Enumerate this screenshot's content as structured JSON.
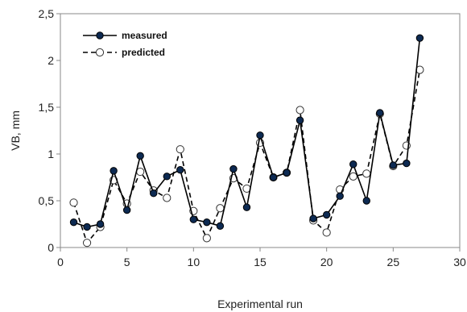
{
  "chart_data": {
    "type": "line",
    "title": "",
    "xlabel": "Experimental run",
    "ylabel": "VB, mm",
    "xlim": [
      0,
      30
    ],
    "ylim": [
      0,
      2.5
    ],
    "xticks": [
      0,
      5,
      10,
      15,
      20,
      25,
      30
    ],
    "xtick_labels": [
      "0",
      "5",
      "10",
      "15",
      "20",
      "25",
      "30"
    ],
    "yticks": [
      0,
      0.5,
      1,
      1.5,
      2,
      2.5
    ],
    "ytick_labels": [
      "0",
      "0,5",
      "1",
      "1,5",
      "2",
      "2,5"
    ],
    "grid": false,
    "legend_position": "top-left",
    "x": [
      1,
      2,
      3,
      4,
      5,
      6,
      7,
      8,
      9,
      10,
      11,
      12,
      13,
      14,
      15,
      16,
      17,
      18,
      19,
      20,
      21,
      22,
      23,
      24,
      25,
      26,
      27
    ],
    "series": [
      {
        "name": "measured",
        "line_style": "solid",
        "marker": "filled-circle",
        "color": "#000000",
        "values": [
          0.27,
          0.22,
          0.25,
          0.82,
          0.4,
          0.98,
          0.58,
          0.76,
          0.83,
          0.3,
          0.27,
          0.23,
          0.84,
          0.43,
          1.2,
          0.75,
          0.8,
          1.36,
          0.31,
          0.35,
          0.55,
          0.89,
          0.5,
          1.44,
          0.88,
          0.9,
          2.24
        ]
      },
      {
        "name": "predicted",
        "line_style": "dashed",
        "marker": "open-circle",
        "color": "#000000",
        "values": [
          0.48,
          0.05,
          0.22,
          0.72,
          0.47,
          0.81,
          0.61,
          0.53,
          1.05,
          0.39,
          0.1,
          0.42,
          0.74,
          0.63,
          1.12,
          0.75,
          0.8,
          1.47,
          0.29,
          0.16,
          0.62,
          0.76,
          0.79,
          1.43,
          0.87,
          1.09,
          1.9
        ]
      }
    ]
  }
}
